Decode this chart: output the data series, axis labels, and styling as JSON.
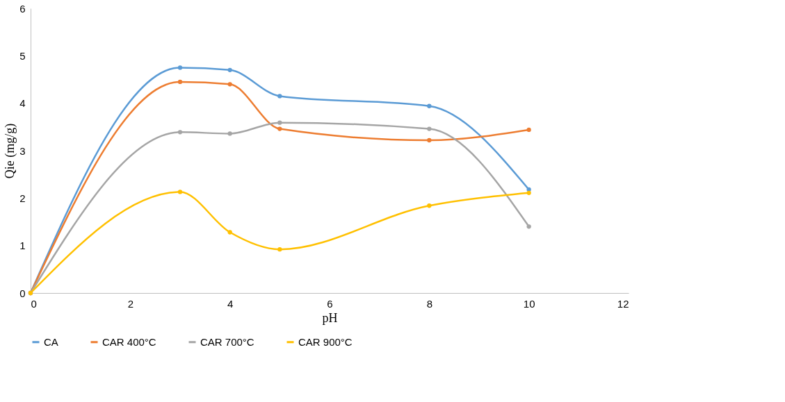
{
  "chart_data": {
    "type": "line",
    "xlabel": "pH",
    "ylabel": "Qie (mg/g)",
    "x": [
      0,
      3,
      4,
      5,
      8,
      10
    ],
    "series": [
      {
        "name": "CA",
        "color": "#5b9bd5",
        "values": [
          0,
          4.75,
          4.7,
          4.15,
          3.94,
          2.18
        ]
      },
      {
        "name": "CAR 400°C",
        "color": "#ed7d31",
        "values": [
          0,
          4.45,
          4.4,
          3.46,
          3.22,
          3.44
        ]
      },
      {
        "name": "CAR 700°C",
        "color": "#a5a5a5",
        "values": [
          0,
          3.39,
          3.36,
          3.59,
          3.46,
          1.4
        ]
      },
      {
        "name": "CAR 900°C",
        "color": "#ffc000",
        "values": [
          0,
          2.13,
          1.28,
          0.92,
          1.84,
          2.11
        ]
      }
    ],
    "xlim": [
      0,
      12
    ],
    "xticks": [
      0,
      2,
      4,
      6,
      8,
      10,
      12
    ],
    "ylim": [
      0,
      6
    ],
    "yticks": [
      0,
      1,
      2,
      3,
      4,
      5,
      6
    ],
    "grid": false,
    "legend": "bottom",
    "marker": "circle",
    "line_style": "solid"
  }
}
